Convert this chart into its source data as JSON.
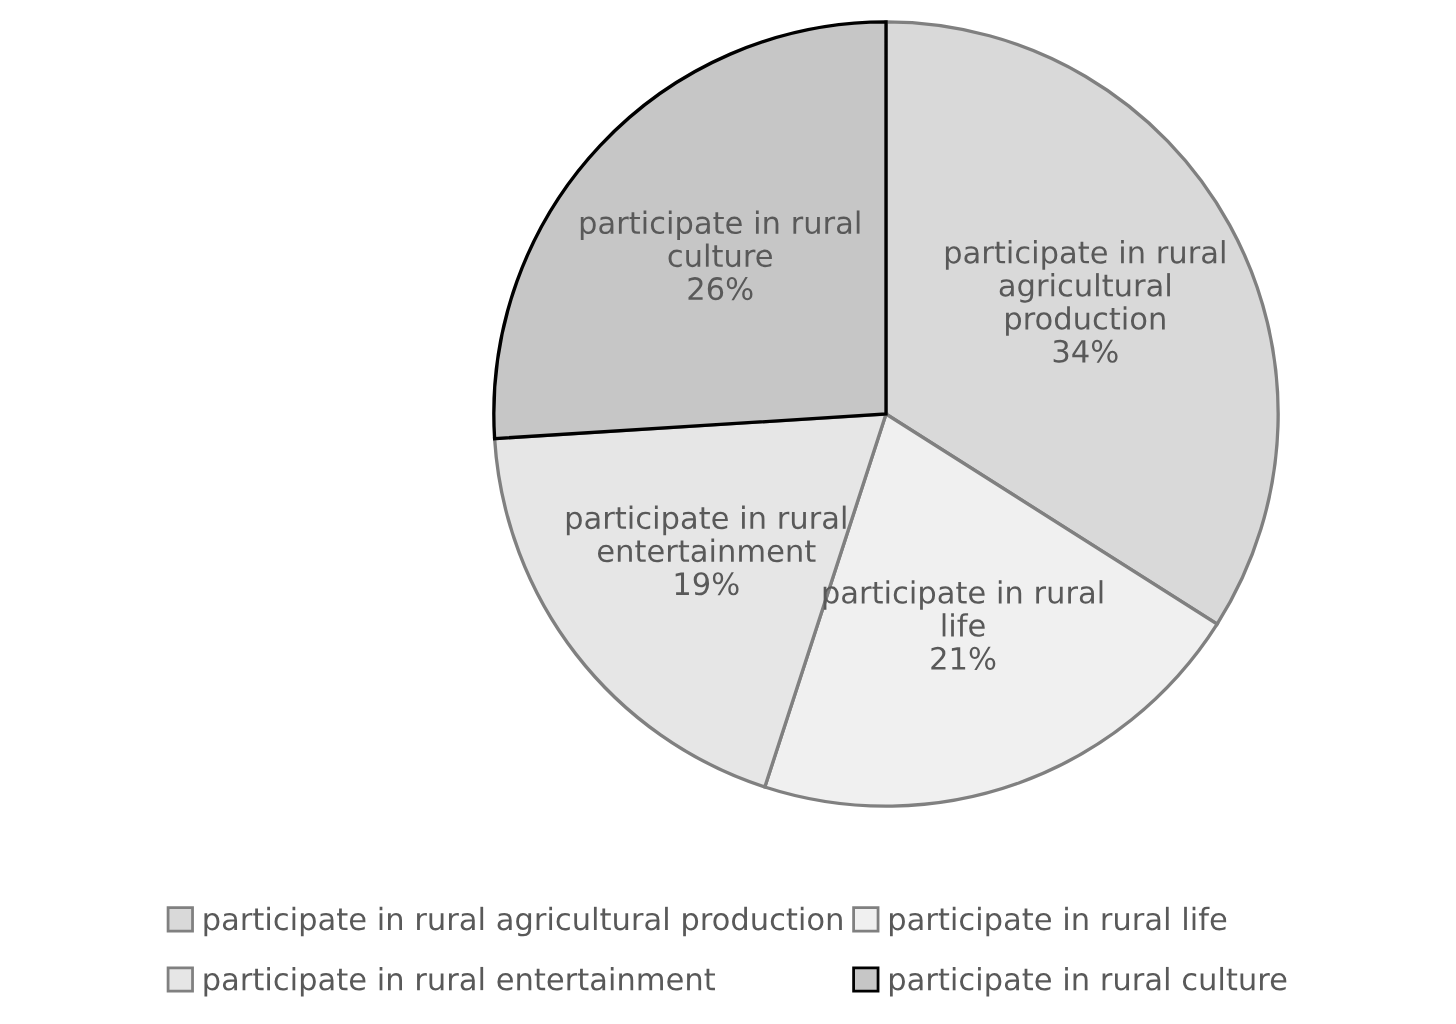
{
  "chart_data": {
    "type": "pie",
    "categories": [
      "participate in rural agricultural production",
      "participate in rural life",
      "participate in rural entertainment",
      "participate in rural culture"
    ],
    "values": [
      34,
      21,
      19,
      26
    ],
    "colors": [
      "#d9d9d9",
      "#f0f0f0",
      "#e6e6e6",
      "#c6c6c6"
    ],
    "value_labels": [
      "34%",
      "21%",
      "19%",
      "26%"
    ],
    "legend": "bottom"
  }
}
